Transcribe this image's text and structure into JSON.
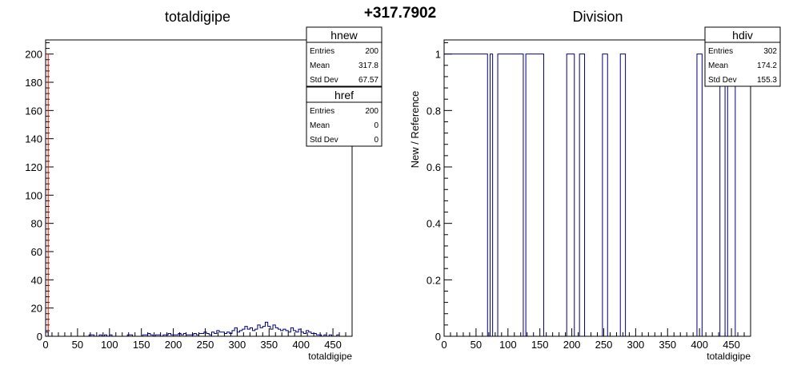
{
  "header": {
    "value_text": "+317.7902"
  },
  "colors": {
    "hnew": "#000080",
    "href": "#ff0000",
    "hdiv": "#000080",
    "frame": "#000000"
  },
  "chart_data": [
    {
      "type": "histogram",
      "title": "totaldigipe",
      "xlabel": "totaldigipe",
      "ylabel": "",
      "xlim": [
        0,
        480
      ],
      "ylim": [
        0,
        210
      ],
      "xticks": [
        0,
        50,
        100,
        150,
        200,
        250,
        300,
        350,
        400,
        450
      ],
      "yticks": [
        0,
        20,
        40,
        60,
        80,
        100,
        120,
        140,
        160,
        180,
        200
      ],
      "bin_width": 4,
      "series": [
        {
          "name": "hnew",
          "bins": [
            [
              0,
              3
            ],
            [
              68,
              1
            ],
            [
              72,
              1
            ],
            [
              84,
              1
            ],
            [
              92,
              1
            ],
            [
              100,
              1
            ],
            [
              128,
              1
            ],
            [
              132,
              1
            ],
            [
              152,
              1
            ],
            [
              156,
              1
            ],
            [
              160,
              2
            ],
            [
              164,
              1
            ],
            [
              172,
              1
            ],
            [
              176,
              1
            ],
            [
              184,
              1
            ],
            [
              188,
              1
            ],
            [
              192,
              2
            ],
            [
              196,
              1
            ],
            [
              200,
              1
            ],
            [
              204,
              1
            ],
            [
              208,
              2
            ],
            [
              212,
              1
            ],
            [
              216,
              2
            ],
            [
              220,
              1
            ],
            [
              224,
              1
            ],
            [
              228,
              1
            ],
            [
              232,
              2
            ],
            [
              236,
              1
            ],
            [
              240,
              2
            ],
            [
              244,
              2
            ],
            [
              248,
              3
            ],
            [
              252,
              2
            ],
            [
              256,
              1
            ],
            [
              260,
              3
            ],
            [
              264,
              2
            ],
            [
              268,
              4
            ],
            [
              272,
              3
            ],
            [
              276,
              3
            ],
            [
              280,
              2
            ],
            [
              284,
              3
            ],
            [
              288,
              2
            ],
            [
              292,
              4
            ],
            [
              296,
              6
            ],
            [
              300,
              3
            ],
            [
              304,
              4
            ],
            [
              308,
              5
            ],
            [
              312,
              7
            ],
            [
              316,
              5
            ],
            [
              320,
              6
            ],
            [
              324,
              4
            ],
            [
              328,
              5
            ],
            [
              332,
              8
            ],
            [
              336,
              6
            ],
            [
              340,
              7
            ],
            [
              344,
              10
            ],
            [
              348,
              7
            ],
            [
              352,
              5
            ],
            [
              356,
              8
            ],
            [
              360,
              6
            ],
            [
              364,
              5
            ],
            [
              368,
              4
            ],
            [
              372,
              5
            ],
            [
              376,
              4
            ],
            [
              380,
              3
            ],
            [
              384,
              6
            ],
            [
              388,
              4
            ],
            [
              392,
              3
            ],
            [
              396,
              5
            ],
            [
              400,
              3
            ],
            [
              404,
              2
            ],
            [
              408,
              4
            ],
            [
              412,
              3
            ],
            [
              416,
              2
            ],
            [
              420,
              2
            ],
            [
              424,
              1
            ],
            [
              428,
              1
            ],
            [
              436,
              1
            ],
            [
              444,
              1
            ],
            [
              456,
              1
            ]
          ]
        },
        {
          "name": "href",
          "bins": [
            [
              0,
              200
            ]
          ]
        }
      ],
      "stats_boxes": [
        {
          "title": "hnew",
          "rows": [
            {
              "label": "Entries",
              "value": "200"
            },
            {
              "label": "Mean",
              "value": "317.8"
            },
            {
              "label": "Std Dev",
              "value": "67.57"
            }
          ]
        },
        {
          "title": "href",
          "rows": [
            {
              "label": "Entries",
              "value": "200"
            },
            {
              "label": "Mean",
              "value": "0"
            },
            {
              "label": "Std Dev",
              "value": "0"
            }
          ]
        }
      ]
    },
    {
      "type": "histogram",
      "title": "Division",
      "xlabel": "totaldigipe",
      "ylabel": "New / Reference",
      "xlim": [
        0,
        480
      ],
      "ylim": [
        0,
        1.05
      ],
      "xticks": [
        0,
        50,
        100,
        150,
        200,
        250,
        300,
        350,
        400,
        450
      ],
      "yticks": [
        0,
        0.2,
        0.4,
        0.6,
        0.8,
        1
      ],
      "ytick_labels": [
        "0",
        "0.2",
        "0.4",
        "0.6",
        "0.8",
        "1"
      ],
      "bin_width": 4,
      "series": [
        {
          "name": "hdiv",
          "bins": [
            [
              0,
              1
            ],
            [
              4,
              1
            ],
            [
              8,
              1
            ],
            [
              12,
              1
            ],
            [
              16,
              1
            ],
            [
              20,
              1
            ],
            [
              24,
              1
            ],
            [
              28,
              1
            ],
            [
              32,
              1
            ],
            [
              36,
              1
            ],
            [
              40,
              1
            ],
            [
              44,
              1
            ],
            [
              48,
              1
            ],
            [
              52,
              1
            ],
            [
              56,
              1
            ],
            [
              60,
              1
            ],
            [
              64,
              1
            ],
            [
              72,
              1
            ],
            [
              84,
              1
            ],
            [
              88,
              1
            ],
            [
              92,
              1
            ],
            [
              96,
              1
            ],
            [
              100,
              1
            ],
            [
              104,
              1
            ],
            [
              108,
              1
            ],
            [
              112,
              1
            ],
            [
              116,
              1
            ],
            [
              120,
              1
            ],
            [
              128,
              1
            ],
            [
              132,
              1
            ],
            [
              136,
              1
            ],
            [
              140,
              1
            ],
            [
              144,
              1
            ],
            [
              148,
              1
            ],
            [
              152,
              1
            ],
            [
              192,
              1
            ],
            [
              196,
              1
            ],
            [
              200,
              1
            ],
            [
              212,
              1
            ],
            [
              216,
              1
            ],
            [
              248,
              1
            ],
            [
              252,
              1
            ],
            [
              276,
              1
            ],
            [
              280,
              1
            ],
            [
              396,
              1
            ],
            [
              400,
              1
            ],
            [
              432,
              1
            ],
            [
              436,
              1
            ],
            [
              444,
              1
            ],
            [
              448,
              1
            ],
            [
              452,
              1
            ]
          ]
        }
      ],
      "stats_boxes": [
        {
          "title": "hdiv",
          "rows": [
            {
              "label": "Entries",
              "value": "302"
            },
            {
              "label": "Mean",
              "value": "174.2"
            },
            {
              "label": "Std Dev",
              "value": "155.3"
            }
          ]
        }
      ]
    }
  ]
}
